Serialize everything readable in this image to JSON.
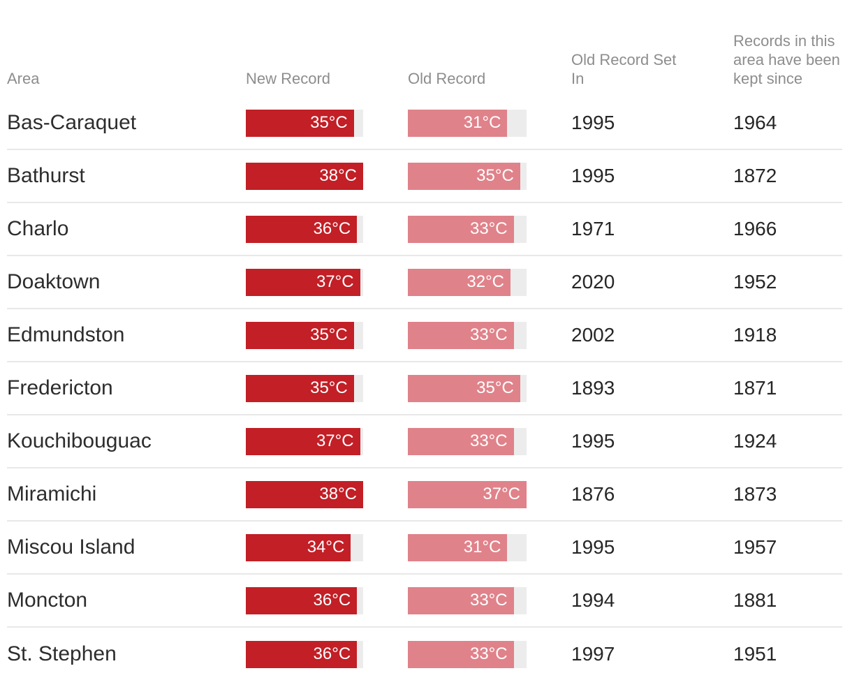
{
  "colors": {
    "new_record_bar": "#c21f26",
    "old_record_bar": "#e0828a",
    "bar_track": "#ececec",
    "row_separator": "#e8e8e8",
    "header_text": "#8d8d8d",
    "body_text": "#2d2d2d",
    "bar_label_text": "#ffffff"
  },
  "chart_data": {
    "type": "table",
    "unit": "°C",
    "title": "",
    "legend_position": "none",
    "grid": "row-separators-only",
    "columns": [
      "Area",
      "New Record",
      "Old Record",
      "Old Record Set In",
      "Records in this area have been kept since"
    ],
    "bar_scale": {
      "new_record_min": 0,
      "new_record_max": 38,
      "old_record_min": 0,
      "old_record_max": 37
    },
    "categories": [
      "Bas-Caraquet",
      "Bathurst",
      "Charlo",
      "Doaktown",
      "Edmundston",
      "Fredericton",
      "Kouchibouguac",
      "Miramichi",
      "Miscou Island",
      "Moncton",
      "St. Stephen"
    ],
    "series": [
      {
        "name": "New Record",
        "values": [
          35,
          38,
          36,
          37,
          35,
          35,
          37,
          38,
          34,
          36,
          36
        ]
      },
      {
        "name": "Old Record",
        "values": [
          31,
          35,
          33,
          32,
          33,
          35,
          33,
          37,
          31,
          33,
          33
        ]
      },
      {
        "name": "Old Record Set In",
        "values": [
          1995,
          1995,
          1971,
          2020,
          2002,
          1893,
          1995,
          1876,
          1995,
          1994,
          1997
        ]
      },
      {
        "name": "Records in this area have been kept since",
        "values": [
          1964,
          1872,
          1966,
          1952,
          1918,
          1871,
          1924,
          1873,
          1957,
          1881,
          1951
        ]
      }
    ],
    "rows": [
      {
        "area": "Bas-Caraquet",
        "new_record": 35,
        "new_record_label": "35°C",
        "old_record": 31,
        "old_record_label": "31°C",
        "set_in": "1995",
        "since": "1964"
      },
      {
        "area": "Bathurst",
        "new_record": 38,
        "new_record_label": "38°C",
        "old_record": 35,
        "old_record_label": "35°C",
        "set_in": "1995",
        "since": "1872"
      },
      {
        "area": "Charlo",
        "new_record": 36,
        "new_record_label": "36°C",
        "old_record": 33,
        "old_record_label": "33°C",
        "set_in": "1971",
        "since": "1966"
      },
      {
        "area": "Doaktown",
        "new_record": 37,
        "new_record_label": "37°C",
        "old_record": 32,
        "old_record_label": "32°C",
        "set_in": "2020",
        "since": "1952"
      },
      {
        "area": "Edmundston",
        "new_record": 35,
        "new_record_label": "35°C",
        "old_record": 33,
        "old_record_label": "33°C",
        "set_in": "2002",
        "since": "1918"
      },
      {
        "area": "Fredericton",
        "new_record": 35,
        "new_record_label": "35°C",
        "old_record": 35,
        "old_record_label": "35°C",
        "set_in": "1893",
        "since": "1871"
      },
      {
        "area": "Kouchibouguac",
        "new_record": 37,
        "new_record_label": "37°C",
        "old_record": 33,
        "old_record_label": "33°C",
        "set_in": "1995",
        "since": "1924"
      },
      {
        "area": "Miramichi",
        "new_record": 38,
        "new_record_label": "38°C",
        "old_record": 37,
        "old_record_label": "37°C",
        "set_in": "1876",
        "since": "1873"
      },
      {
        "area": "Miscou Island",
        "new_record": 34,
        "new_record_label": "34°C",
        "old_record": 31,
        "old_record_label": "31°C",
        "set_in": "1995",
        "since": "1957"
      },
      {
        "area": "Moncton",
        "new_record": 36,
        "new_record_label": "36°C",
        "old_record": 33,
        "old_record_label": "33°C",
        "set_in": "1994",
        "since": "1881"
      },
      {
        "area": "St. Stephen",
        "new_record": 36,
        "new_record_label": "36°C",
        "old_record": 33,
        "old_record_label": "33°C",
        "set_in": "1997",
        "since": "1951"
      }
    ]
  }
}
